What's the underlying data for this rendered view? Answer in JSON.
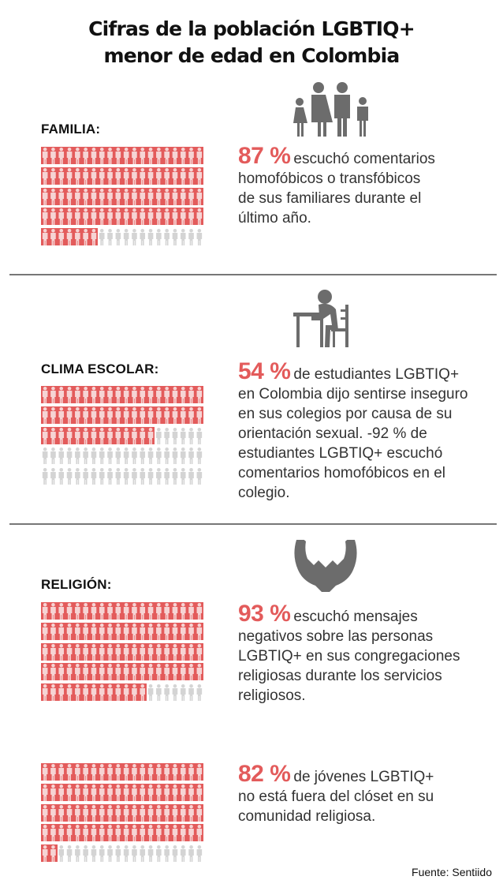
{
  "title": {
    "line1": "Cifras de la población LGBTIQ+",
    "line2": "menor de edad en Colombia"
  },
  "colors": {
    "accent": "#e35b5b",
    "figure_highlight": "#f6d4d4",
    "figure_gray": "#d4d4d4",
    "icon": "#6c6c6c"
  },
  "sections": [
    {
      "label": "FAMILIA:",
      "icon": "family-icon",
      "figures_per_row": 20,
      "rows": 5,
      "highlighted": 87,
      "percent": "87 %",
      "lines": [
        "escuchó comentarios",
        "homofóbicos o transfóbicos",
        "de sus familiares durante el",
        "último año."
      ]
    },
    {
      "label": "CLIMA ESCOLAR:",
      "icon": "student-desk-icon",
      "figures_per_row": 20,
      "rows": 5,
      "highlighted": 54,
      "percent": "54 %",
      "lines": [
        "de estudiantes LGBTIQ+",
        "en Colombia dijo sentirse inseguro",
        "en sus colegios por causa de su",
        "orientación sexual. -92 % de",
        "estudiantes LGBTIQ+ escuchó",
        "comentarios homofóbicos en el",
        "colegio."
      ]
    },
    {
      "label": "RELIGIÓN:",
      "icon": "praying-hands-icon",
      "figures_per_row": 20,
      "rows": 5,
      "highlighted": 93,
      "percent": "93 %",
      "lines": [
        "escuchó mensajes",
        "negativos sobre las personas",
        "LGBTIQ+ en sus congregaciones",
        "religiosas durante los servicios",
        "religiosos."
      ]
    },
    {
      "label": "",
      "icon": "",
      "figures_per_row": 20,
      "rows": 5,
      "highlighted": 82,
      "percent": "82 %",
      "lines": [
        "de jóvenes LGBTIQ+",
        "no está fuera del clóset en su",
        "comunidad religiosa."
      ]
    }
  ],
  "source": "Fuente:  Sentiido"
}
